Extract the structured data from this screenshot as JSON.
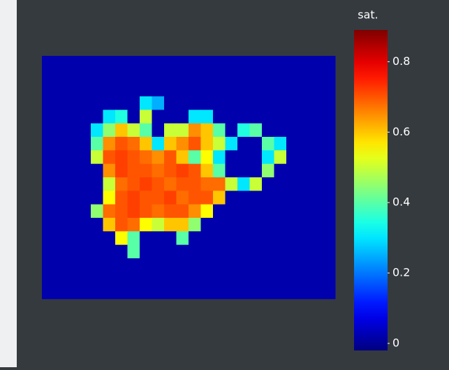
{
  "chart_data": {
    "type": "heatmap",
    "colorscale": "jet",
    "colorbar_title": "sat.",
    "zlim": [
      -0.02,
      0.89
    ],
    "zticks": [
      0,
      0.2,
      0.4,
      0.6,
      0.8
    ],
    "z": [
      [
        0.02,
        0.02,
        0.02,
        0.02,
        0.02,
        0.02,
        0.02,
        0.02,
        0.02,
        0.02,
        0.02,
        0.02,
        0.02,
        0.02,
        0.02,
        0.02,
        0.02,
        0.02,
        0.02,
        0.02,
        0.02,
        0.02,
        0.02,
        0.02
      ],
      [
        0.02,
        0.02,
        0.02,
        0.02,
        0.02,
        0.02,
        0.02,
        0.02,
        0.02,
        0.02,
        0.02,
        0.02,
        0.02,
        0.02,
        0.02,
        0.02,
        0.02,
        0.02,
        0.02,
        0.02,
        0.02,
        0.02,
        0.02,
        0.02
      ],
      [
        0.02,
        0.02,
        0.02,
        0.02,
        0.02,
        0.02,
        0.02,
        0.02,
        0.02,
        0.02,
        0.02,
        0.02,
        0.02,
        0.02,
        0.02,
        0.02,
        0.02,
        0.02,
        0.02,
        0.02,
        0.02,
        0.02,
        0.02,
        0.02
      ],
      [
        0.02,
        0.02,
        0.02,
        0.02,
        0.02,
        0.02,
        0.02,
        0.02,
        0.3,
        0.25,
        0.02,
        0.02,
        0.02,
        0.02,
        0.02,
        0.02,
        0.02,
        0.02,
        0.02,
        0.02,
        0.02,
        0.02,
        0.02,
        0.02
      ],
      [
        0.02,
        0.02,
        0.02,
        0.02,
        0.02,
        0.3,
        0.35,
        0.02,
        0.5,
        0.02,
        0.02,
        0.02,
        0.3,
        0.3,
        0.02,
        0.02,
        0.02,
        0.02,
        0.02,
        0.02,
        0.02,
        0.02,
        0.02,
        0.02
      ],
      [
        0.02,
        0.02,
        0.02,
        0.02,
        0.3,
        0.45,
        0.6,
        0.5,
        0.4,
        0.02,
        0.5,
        0.5,
        0.65,
        0.6,
        0.4,
        0.02,
        0.35,
        0.4,
        0.02,
        0.02,
        0.02,
        0.02,
        0.02,
        0.02
      ],
      [
        0.02,
        0.02,
        0.02,
        0.02,
        0.4,
        0.65,
        0.7,
        0.68,
        0.6,
        0.3,
        0.6,
        0.65,
        0.7,
        0.6,
        0.5,
        0.3,
        0.02,
        0.02,
        0.4,
        0.3,
        0.02,
        0.02,
        0.02,
        0.02
      ],
      [
        0.02,
        0.02,
        0.02,
        0.02,
        0.5,
        0.7,
        0.72,
        0.7,
        0.68,
        0.65,
        0.7,
        0.6,
        0.4,
        0.55,
        0.3,
        0.02,
        0.02,
        0.02,
        0.3,
        0.5,
        0.02,
        0.02,
        0.02,
        0.02
      ],
      [
        0.02,
        0.02,
        0.02,
        0.02,
        0.02,
        0.65,
        0.72,
        0.7,
        0.7,
        0.68,
        0.7,
        0.72,
        0.7,
        0.6,
        0.4,
        0.02,
        0.02,
        0.02,
        0.45,
        0.02,
        0.02,
        0.02,
        0.02,
        0.02
      ],
      [
        0.02,
        0.02,
        0.02,
        0.02,
        0.02,
        0.5,
        0.68,
        0.7,
        0.72,
        0.7,
        0.68,
        0.7,
        0.7,
        0.68,
        0.68,
        0.5,
        0.3,
        0.5,
        0.02,
        0.02,
        0.02,
        0.02,
        0.02,
        0.02
      ],
      [
        0.02,
        0.02,
        0.02,
        0.02,
        0.02,
        0.55,
        0.7,
        0.72,
        0.7,
        0.7,
        0.72,
        0.68,
        0.7,
        0.7,
        0.6,
        0.02,
        0.02,
        0.02,
        0.02,
        0.02,
        0.02,
        0.02,
        0.02,
        0.02
      ],
      [
        0.02,
        0.02,
        0.02,
        0.02,
        0.45,
        0.68,
        0.7,
        0.72,
        0.7,
        0.68,
        0.7,
        0.7,
        0.65,
        0.55,
        0.02,
        0.02,
        0.02,
        0.02,
        0.02,
        0.02,
        0.02,
        0.02,
        0.02,
        0.02
      ],
      [
        0.02,
        0.02,
        0.02,
        0.02,
        0.02,
        0.6,
        0.7,
        0.68,
        0.55,
        0.5,
        0.6,
        0.6,
        0.45,
        0.02,
        0.02,
        0.02,
        0.02,
        0.02,
        0.02,
        0.02,
        0.02,
        0.02,
        0.02,
        0.02
      ],
      [
        0.02,
        0.02,
        0.02,
        0.02,
        0.02,
        0.02,
        0.55,
        0.4,
        0.02,
        0.02,
        0.02,
        0.4,
        0.02,
        0.02,
        0.02,
        0.02,
        0.02,
        0.02,
        0.02,
        0.02,
        0.02,
        0.02,
        0.02,
        0.02
      ],
      [
        0.02,
        0.02,
        0.02,
        0.02,
        0.02,
        0.02,
        0.02,
        0.4,
        0.02,
        0.02,
        0.02,
        0.02,
        0.02,
        0.02,
        0.02,
        0.02,
        0.02,
        0.02,
        0.02,
        0.02,
        0.02,
        0.02,
        0.02,
        0.02
      ],
      [
        0.02,
        0.02,
        0.02,
        0.02,
        0.02,
        0.02,
        0.02,
        0.02,
        0.02,
        0.02,
        0.02,
        0.02,
        0.02,
        0.02,
        0.02,
        0.02,
        0.02,
        0.02,
        0.02,
        0.02,
        0.02,
        0.02,
        0.02,
        0.02
      ],
      [
        0.02,
        0.02,
        0.02,
        0.02,
        0.02,
        0.02,
        0.02,
        0.02,
        0.02,
        0.02,
        0.02,
        0.02,
        0.02,
        0.02,
        0.02,
        0.02,
        0.02,
        0.02,
        0.02,
        0.02,
        0.02,
        0.02,
        0.02,
        0.02
      ],
      [
        0.02,
        0.02,
        0.02,
        0.02,
        0.02,
        0.02,
        0.02,
        0.02,
        0.02,
        0.02,
        0.02,
        0.02,
        0.02,
        0.02,
        0.02,
        0.02,
        0.02,
        0.02,
        0.02,
        0.02,
        0.02,
        0.02,
        0.02,
        0.02
      ]
    ]
  }
}
